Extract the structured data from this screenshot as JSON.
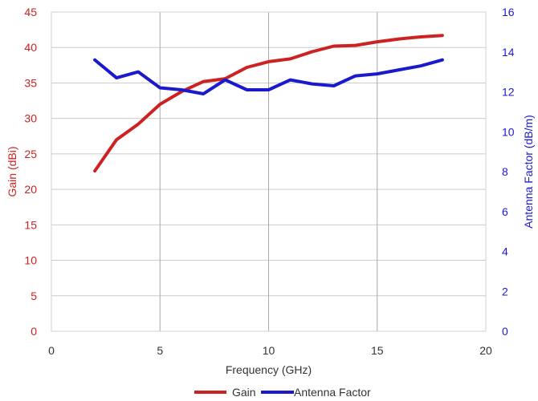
{
  "chart_data": {
    "type": "line",
    "xlabel": "Frequency (GHz)",
    "xlim": [
      0,
      20
    ],
    "xticks": [
      0,
      5,
      10,
      15,
      20
    ],
    "grid": true,
    "legend_position": "bottom",
    "axes": {
      "left": {
        "label": "Gain (dBi)",
        "lim": [
          0,
          45
        ],
        "ticks": [
          0,
          5,
          10,
          15,
          20,
          25,
          30,
          35,
          40,
          45
        ],
        "color": "#cc2222"
      },
      "right": {
        "label": "Antenna Factor (dB/m)",
        "lim": [
          0,
          16
        ],
        "ticks": [
          0,
          2,
          4,
          6,
          8,
          10,
          12,
          14,
          16
        ],
        "color": "#1a1acc"
      }
    },
    "series": [
      {
        "name": "Gain",
        "axis": "left",
        "color": "#cc2222",
        "x": [
          2,
          3,
          4,
          5,
          6,
          7,
          8,
          9,
          10,
          11,
          12,
          13,
          14,
          15,
          16,
          17,
          18
        ],
        "y": [
          22.6,
          27.0,
          29.2,
          32.0,
          33.8,
          35.2,
          35.6,
          37.2,
          38.0,
          38.4,
          39.4,
          40.2,
          40.3,
          40.8,
          41.2,
          41.5,
          41.7
        ]
      },
      {
        "name": "Antenna Factor",
        "axis": "right",
        "color": "#1a1acc",
        "x": [
          2,
          3,
          4,
          5,
          6,
          7,
          8,
          9,
          10,
          11,
          12,
          13,
          14,
          15,
          16,
          17,
          18
        ],
        "y": [
          13.6,
          12.7,
          13.0,
          12.2,
          12.1,
          11.9,
          12.6,
          12.1,
          12.1,
          12.6,
          12.4,
          12.3,
          12.8,
          12.9,
          13.1,
          13.3,
          13.6
        ]
      }
    ]
  }
}
